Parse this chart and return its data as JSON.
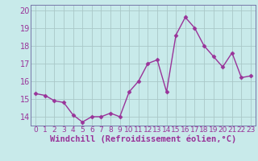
{
  "x": [
    0,
    1,
    2,
    3,
    4,
    5,
    6,
    7,
    8,
    9,
    10,
    11,
    12,
    13,
    14,
    15,
    16,
    17,
    18,
    19,
    20,
    21,
    22,
    23
  ],
  "y": [
    15.3,
    15.2,
    14.9,
    14.8,
    14.1,
    13.7,
    14.0,
    14.0,
    14.2,
    14.0,
    15.4,
    16.0,
    17.0,
    17.2,
    15.4,
    18.6,
    19.6,
    19.0,
    18.0,
    17.4,
    16.8,
    17.6,
    16.2,
    16.3
  ],
  "line_color": "#993399",
  "marker": "D",
  "markersize": 2.5,
  "linewidth": 1.0,
  "xlabel": "Windchill (Refroidissement éolien,°C)",
  "xlabel_fontsize": 7.5,
  "xtick_labels": [
    "0",
    "1",
    "2",
    "3",
    "4",
    "5",
    "6",
    "7",
    "8",
    "9",
    "10",
    "11",
    "12",
    "13",
    "14",
    "15",
    "16",
    "17",
    "18",
    "19",
    "20",
    "21",
    "22",
    "23"
  ],
  "ylim": [
    13.5,
    20.3
  ],
  "yticks": [
    14,
    15,
    16,
    17,
    18,
    19,
    20
  ],
  "ytick_fontsize": 7,
  "xtick_fontsize": 6.5,
  "background_color": "#c8eaea",
  "grid_color": "#aac8c8",
  "spine_color": "#7777aa"
}
